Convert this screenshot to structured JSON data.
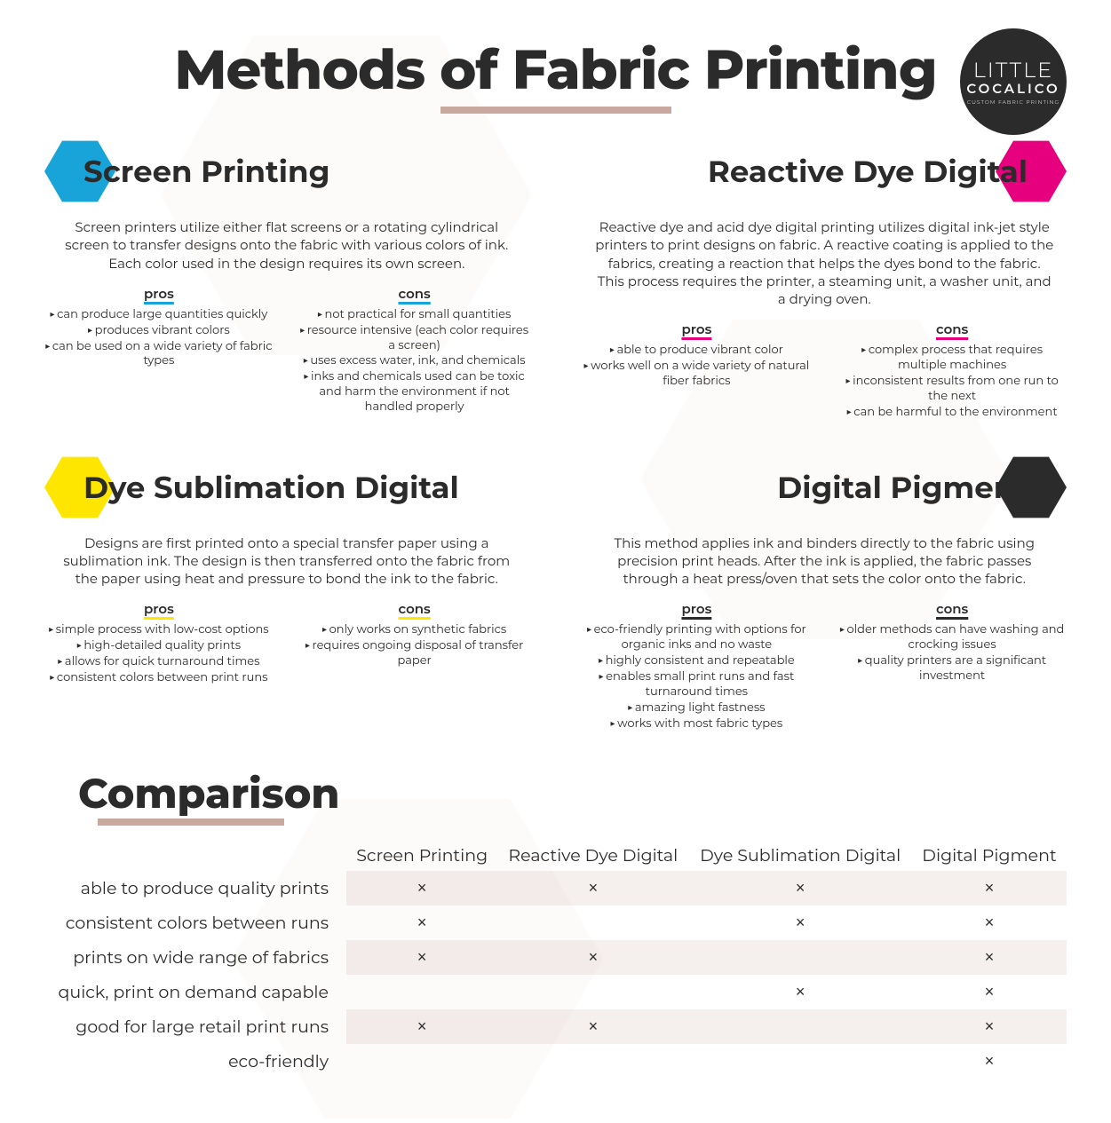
{
  "header": {
    "title": "Methods of Fabric Printing",
    "underline_color": "#c9a89f",
    "logo": {
      "line1": "LITTLE",
      "line2": "COCALICO",
      "line3": "CUSTOM FABRIC PRINTING",
      "bg": "#2b2b2b",
      "fg": "#ffffff"
    }
  },
  "labels": {
    "pros": "pros",
    "cons": "cons"
  },
  "methods": [
    {
      "id": "screen",
      "title": "Screen Printing",
      "hex_color": "#18a4d8",
      "accent": "#18a4d8",
      "header_align": "left",
      "desc": "Screen printers utilize either flat screens or a rotating cylindrical screen to transfer designs onto the fabric with various colors of ink. Each color used in the design requires its own screen.",
      "pros": [
        "can produce large quantities quickly",
        "produces vibrant colors",
        "can be used on a wide variety of fabric types"
      ],
      "cons": [
        "not practical for small quantities",
        "resource intensive (each color requires a screen)",
        "uses excess water, ink, and chemicals",
        "inks and chemicals used can be toxic and harm the environment if not handled properly"
      ]
    },
    {
      "id": "reactive",
      "title": "Reactive Dye Digital",
      "hex_color": "#e6007e",
      "accent": "#e6007e",
      "header_align": "right",
      "desc": "Reactive dye and acid dye digital printing utilizes digital ink-jet style printers to print designs on fabric. A reactive coating is applied to the fabrics, creating a reaction that helps the dyes bond to the fabric. This process requires the printer, a steaming unit, a washer unit, and a drying oven.",
      "pros": [
        "able to produce vibrant color",
        "works well on a wide variety of natural fiber fabrics"
      ],
      "cons": [
        "complex process that requires multiple machines",
        "inconsistent results from one run to the next",
        "can be harmful to the environment"
      ]
    },
    {
      "id": "dye-sub",
      "title": "Dye Sublimation Digital",
      "hex_color": "#ffe600",
      "accent": "#ffe600",
      "header_align": "left",
      "desc": "Designs are first printed onto a special transfer paper using a sublimation ink. The design is then transferred onto the fabric from the paper using heat and pressure to bond the ink to the fabric.",
      "pros": [
        "simple process with low-cost options",
        "high-detailed quality prints",
        "allows for quick turnaround times",
        "consistent colors between print runs"
      ],
      "cons": [
        "only works on synthetic fabrics",
        "requires ongoing disposal of transfer paper"
      ]
    },
    {
      "id": "pigment",
      "title": "Digital Pigment",
      "hex_color": "#2b2b2b",
      "accent": "#2b2b2b",
      "header_align": "right",
      "desc": "This method applies ink and binders directly to the fabric using precision print heads. After the ink is applied, the fabric passes through a heat press/oven that sets the color onto the fabric.",
      "pros": [
        "eco-friendly printing with options for organic inks and no waste",
        "highly consistent and repeatable",
        "enables small print runs and fast turnaround times",
        "amazing light fastness",
        "works with most fabric types"
      ],
      "cons": [
        "older methods can have washing and crocking issues",
        "quality printers are a significant investment"
      ]
    }
  ],
  "comparison": {
    "title": "Comparison",
    "underline_color": "#c9a89f",
    "mark_glyph": "×",
    "columns": [
      "Screen Printing",
      "Reactive Dye Digital",
      "Dye Sublimation Digital",
      "Digital Pigment"
    ],
    "rows": [
      {
        "label": "able to produce quality prints",
        "cells": [
          true,
          true,
          true,
          true
        ]
      },
      {
        "label": "consistent colors between runs",
        "cells": [
          true,
          false,
          true,
          true
        ]
      },
      {
        "label": "prints on wide range of fabrics",
        "cells": [
          true,
          true,
          false,
          true
        ]
      },
      {
        "label": "quick, print on demand capable",
        "cells": [
          false,
          false,
          true,
          true
        ]
      },
      {
        "label": "good for large retail print runs",
        "cells": [
          true,
          true,
          false,
          true
        ]
      },
      {
        "label": "eco-friendly",
        "cells": [
          false,
          false,
          false,
          true
        ]
      }
    ],
    "stripe_color": "rgba(201,168,159,0.18)"
  },
  "styling": {
    "background_color": "#ffffff",
    "text_color": "#2b2b2b",
    "title_fontsize_pt": 46,
    "method_title_fontsize_pt": 26,
    "body_fontsize_pt": 11,
    "table_fontsize_pt": 14
  }
}
